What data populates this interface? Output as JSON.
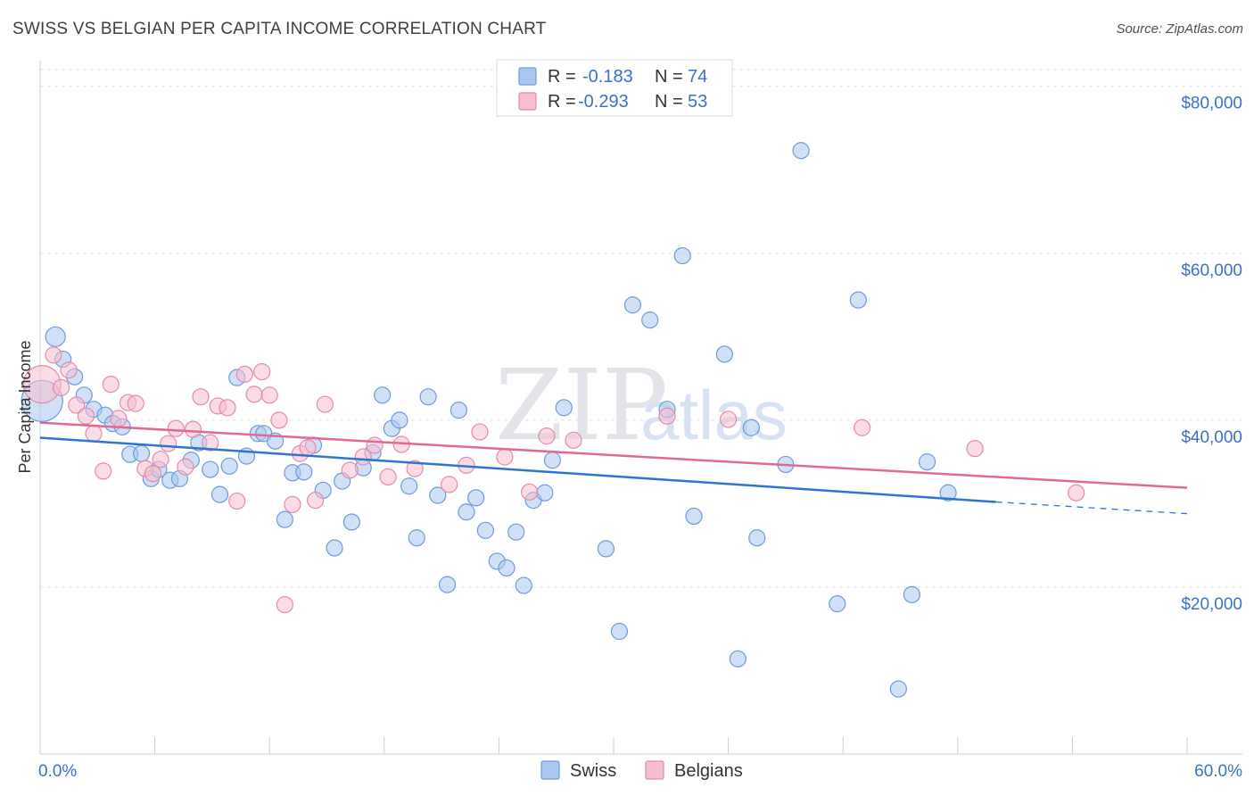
{
  "title": "SWISS VS BELGIAN PER CAPITA INCOME CORRELATION CHART",
  "source": "Source: ZipAtlas.com",
  "watermark": {
    "zip": "ZIP",
    "atlas": "atlas"
  },
  "chart_data": {
    "type": "scatter",
    "xlabel": "",
    "ylabel": "Per Capita Income",
    "xlim": [
      0,
      60
    ],
    "ylim": [
      0,
      82000
    ],
    "x_tick_labels": [
      {
        "value": 0,
        "label": "0.0%"
      },
      {
        "value": 60,
        "label": "60.0%"
      }
    ],
    "y_ticks": [
      {
        "value": 20000,
        "label": "$20,000"
      },
      {
        "value": 40000,
        "label": "$40,000"
      },
      {
        "value": 60000,
        "label": "$60,000"
      },
      {
        "value": 80000,
        "label": "$80,000"
      }
    ],
    "grid": true,
    "legend_position": "top-center",
    "colors": {
      "swiss": "#a9c8f0",
      "swiss_edge": "#6e9bd8",
      "swiss_line": "#2f74d0",
      "belgians": "#f7bdd0",
      "belgians_edge": "#e58aa8",
      "belgians_line": "#e06a93"
    },
    "stats": [
      {
        "r_label": "R =",
        "r_value": "-0.183",
        "n_label": "N =",
        "n_value": "74"
      },
      {
        "r_label": "R =",
        "r_value": "-0.293",
        "n_label": "N =",
        "n_value": "53"
      }
    ],
    "series": [
      {
        "name": "Swiss",
        "trend": {
          "x0": 0,
          "y0": 37900,
          "x1": 50,
          "y1": 30200,
          "dash_to_x": 60,
          "dash_to_y": 28800
        },
        "points": [
          [
            0.1,
            42300,
            22
          ],
          [
            0.8,
            50000,
            10
          ],
          [
            1.2,
            47300,
            8
          ],
          [
            1.8,
            45200,
            8
          ],
          [
            2.3,
            43000,
            8
          ],
          [
            2.8,
            41300,
            8
          ],
          [
            3.4,
            40600,
            8
          ],
          [
            3.8,
            39600,
            8
          ],
          [
            4.3,
            39200,
            8
          ],
          [
            4.7,
            35900,
            8
          ],
          [
            5.3,
            36000,
            8
          ],
          [
            5.8,
            33000,
            8
          ],
          [
            6.2,
            34100,
            8
          ],
          [
            6.8,
            32800,
            8
          ],
          [
            7.3,
            33000,
            8
          ],
          [
            7.9,
            35200,
            8
          ],
          [
            8.3,
            37300,
            8
          ],
          [
            8.9,
            34100,
            8
          ],
          [
            9.4,
            31100,
            8
          ],
          [
            9.9,
            34500,
            8
          ],
          [
            10.3,
            45100,
            8
          ],
          [
            10.8,
            35700,
            8
          ],
          [
            11.4,
            38400,
            8
          ],
          [
            11.7,
            38400,
            8
          ],
          [
            12.3,
            37500,
            8
          ],
          [
            12.8,
            28100,
            8
          ],
          [
            13.2,
            33700,
            8
          ],
          [
            13.8,
            33800,
            8
          ],
          [
            14.3,
            37000,
            8
          ],
          [
            14.8,
            31600,
            8
          ],
          [
            15.4,
            24700,
            8
          ],
          [
            15.8,
            32700,
            8
          ],
          [
            16.3,
            27800,
            8
          ],
          [
            16.9,
            34300,
            8
          ],
          [
            17.4,
            36100,
            8
          ],
          [
            17.9,
            43000,
            8
          ],
          [
            18.4,
            39000,
            8
          ],
          [
            18.8,
            40000,
            8
          ],
          [
            19.3,
            32100,
            8
          ],
          [
            19.7,
            25900,
            8
          ],
          [
            20.3,
            42800,
            8
          ],
          [
            20.8,
            31000,
            8
          ],
          [
            21.3,
            20300,
            8
          ],
          [
            21.9,
            41200,
            8
          ],
          [
            22.3,
            29000,
            8
          ],
          [
            22.8,
            30700,
            8
          ],
          [
            23.3,
            26800,
            8
          ],
          [
            23.9,
            23100,
            8
          ],
          [
            24.4,
            22300,
            8
          ],
          [
            24.9,
            26600,
            8
          ],
          [
            25.3,
            20200,
            8
          ],
          [
            25.8,
            30400,
            8
          ],
          [
            26.4,
            31300,
            8
          ],
          [
            26.8,
            35200,
            8
          ],
          [
            27.4,
            41500,
            8
          ],
          [
            29.6,
            24600,
            8
          ],
          [
            30.3,
            14700,
            8
          ],
          [
            31.0,
            53800,
            8
          ],
          [
            31.9,
            52000,
            8
          ],
          [
            32.8,
            41300,
            8
          ],
          [
            33.6,
            59700,
            8
          ],
          [
            34.2,
            28500,
            8
          ],
          [
            35.8,
            47900,
            8
          ],
          [
            36.5,
            11400,
            8
          ],
          [
            37.2,
            39100,
            8
          ],
          [
            37.5,
            25900,
            8
          ],
          [
            39.0,
            34700,
            8
          ],
          [
            39.8,
            72300,
            8
          ],
          [
            41.7,
            18000,
            8
          ],
          [
            42.8,
            54400,
            8
          ],
          [
            44.9,
            7800,
            8
          ],
          [
            45.6,
            19100,
            8
          ],
          [
            46.4,
            35000,
            8
          ],
          [
            47.5,
            31300,
            8
          ]
        ]
      },
      {
        "name": "Belgians",
        "trend": {
          "x0": 0,
          "y0": 39700,
          "x1": 60,
          "y1": 31900
        },
        "points": [
          [
            0.1,
            44300,
            20
          ],
          [
            0.7,
            47800,
            8
          ],
          [
            1.1,
            43900,
            8
          ],
          [
            1.5,
            46000,
            8
          ],
          [
            1.9,
            41800,
            8
          ],
          [
            2.4,
            40500,
            8
          ],
          [
            2.8,
            38400,
            8
          ],
          [
            3.3,
            33900,
            8
          ],
          [
            3.7,
            44300,
            8
          ],
          [
            4.1,
            40200,
            8
          ],
          [
            4.6,
            42100,
            8
          ],
          [
            5.0,
            42000,
            8
          ],
          [
            5.5,
            34200,
            8
          ],
          [
            5.9,
            33600,
            8
          ],
          [
            6.3,
            35300,
            8
          ],
          [
            6.7,
            37200,
            8
          ],
          [
            7.1,
            39000,
            8
          ],
          [
            7.6,
            34400,
            8
          ],
          [
            8.0,
            38900,
            8
          ],
          [
            8.4,
            42800,
            8
          ],
          [
            8.9,
            37300,
            8
          ],
          [
            9.3,
            41700,
            8
          ],
          [
            9.8,
            41500,
            8
          ],
          [
            10.3,
            30300,
            8
          ],
          [
            10.7,
            45500,
            8
          ],
          [
            11.2,
            43100,
            8
          ],
          [
            11.6,
            45800,
            8
          ],
          [
            12.0,
            43000,
            8
          ],
          [
            12.5,
            40000,
            8
          ],
          [
            12.8,
            17900,
            8
          ],
          [
            13.2,
            29900,
            8
          ],
          [
            13.6,
            36000,
            8
          ],
          [
            14.0,
            36700,
            8
          ],
          [
            14.4,
            30400,
            8
          ],
          [
            14.9,
            41900,
            8
          ],
          [
            16.2,
            34000,
            8
          ],
          [
            16.9,
            35600,
            8
          ],
          [
            17.5,
            37000,
            8
          ],
          [
            18.2,
            33200,
            8
          ],
          [
            18.9,
            37100,
            8
          ],
          [
            19.6,
            34200,
            8
          ],
          [
            21.4,
            32300,
            8
          ],
          [
            22.3,
            34600,
            8
          ],
          [
            23.0,
            38600,
            8
          ],
          [
            24.3,
            35600,
            8
          ],
          [
            25.6,
            31400,
            8
          ],
          [
            26.5,
            38100,
            8
          ],
          [
            27.9,
            37600,
            8
          ],
          [
            32.8,
            40500,
            8
          ],
          [
            36.0,
            40100,
            8
          ],
          [
            43.0,
            39100,
            8
          ],
          [
            48.9,
            36600,
            8
          ],
          [
            54.2,
            31300,
            8
          ]
        ]
      }
    ]
  }
}
